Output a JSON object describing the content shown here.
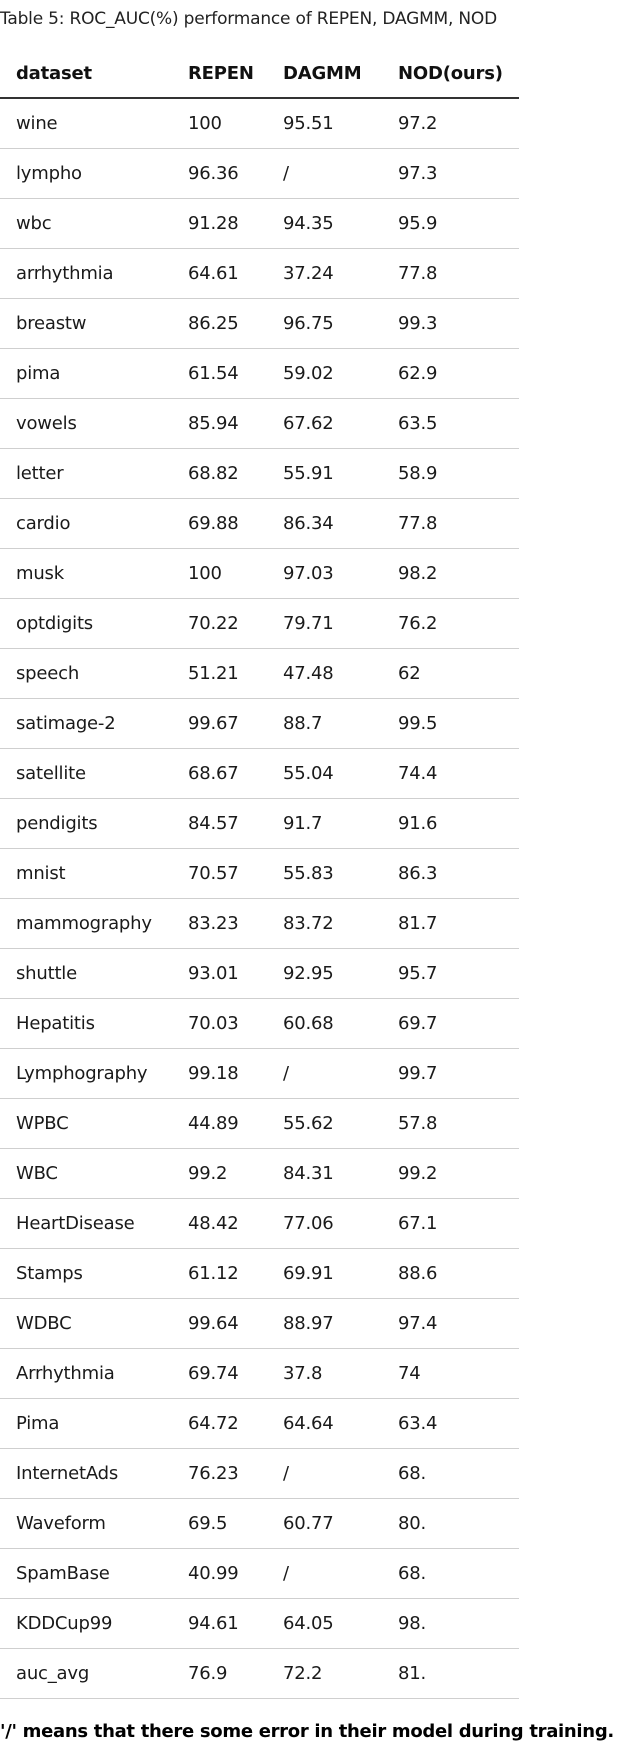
{
  "caption": "Table 5: ROC_AUC(%) performance of REPEN, DAGMM, NOD",
  "table": {
    "headers": [
      "dataset",
      "REPEN",
      "DAGMM",
      "NOD(ours)"
    ],
    "rows": [
      [
        "wine",
        "100",
        "95.51",
        "97.2"
      ],
      [
        "lympho",
        "96.36",
        "/",
        "97.3"
      ],
      [
        "wbc",
        "91.28",
        "94.35",
        "95.9"
      ],
      [
        "arrhythmia",
        "64.61",
        "37.24",
        "77.8"
      ],
      [
        "breastw",
        "86.25",
        "96.75",
        "99.3"
      ],
      [
        "pima",
        "61.54",
        "59.02",
        "62.9"
      ],
      [
        "vowels",
        "85.94",
        "67.62",
        "63.5"
      ],
      [
        "letter",
        "68.82",
        "55.91",
        "58.9"
      ],
      [
        "cardio",
        "69.88",
        "86.34",
        "77.8"
      ],
      [
        "musk",
        "100",
        "97.03",
        "98.2"
      ],
      [
        "optdigits",
        "70.22",
        "79.71",
        "76.2"
      ],
      [
        "speech",
        "51.21",
        "47.48",
        "62"
      ],
      [
        "satimage-2",
        "99.67",
        "88.7",
        "99.5"
      ],
      [
        "satellite",
        "68.67",
        "55.04",
        "74.4"
      ],
      [
        "pendigits",
        "84.57",
        "91.7",
        "91.6"
      ],
      [
        "mnist",
        "70.57",
        "55.83",
        "86.3"
      ],
      [
        "mammography",
        "83.23",
        "83.72",
        "81.7"
      ],
      [
        "shuttle",
        "93.01",
        "92.95",
        "95.7"
      ],
      [
        "Hepatitis",
        "70.03",
        "60.68",
        "69.7"
      ],
      [
        "Lymphography",
        "99.18",
        "/",
        "99.7"
      ],
      [
        "WPBC",
        "44.89",
        "55.62",
        "57.8"
      ],
      [
        "WBC",
        "99.2",
        "84.31",
        "99.2"
      ],
      [
        "HeartDisease",
        "48.42",
        "77.06",
        "67.1"
      ],
      [
        "Stamps",
        "61.12",
        "69.91",
        "88.6"
      ],
      [
        "WDBC",
        "99.64",
        "88.97",
        "97.4"
      ],
      [
        "Arrhythmia",
        "69.74",
        "37.8",
        "74"
      ],
      [
        "Pima",
        "64.72",
        "64.64",
        "63.4"
      ],
      [
        "InternetAds",
        "76.23",
        "/",
        "68."
      ],
      [
        "Waveform",
        "69.5",
        "60.77",
        "80."
      ],
      [
        "SpamBase",
        "40.99",
        "/",
        "68."
      ],
      [
        "KDDCup99",
        "94.61",
        "64.05",
        "98."
      ],
      [
        "auc_avg",
        "76.9",
        "72.2",
        "81."
      ]
    ]
  },
  "footnote": "'/' means that there some error in their model during training."
}
